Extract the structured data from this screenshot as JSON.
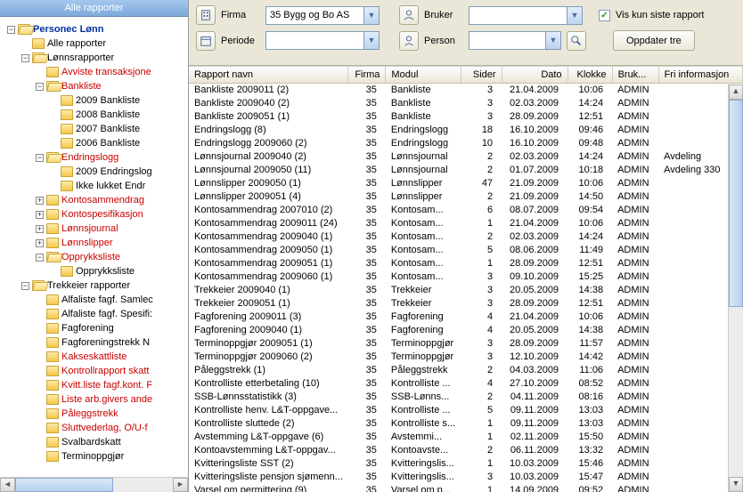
{
  "tree_header": "Alle rapporter",
  "root": {
    "label": "Personec Lønn",
    "alle": "Alle rapporter",
    "lonns": "Lønnsrapporter",
    "avviste": "Avviste transaksjone",
    "bankliste": "Bankliste",
    "bank2009": "2009 Bankliste",
    "bank2008": "2008 Bankliste",
    "bank2007": "2007 Bankliste",
    "bank2006": "2006 Bankliste",
    "endringslogg": "Endringslogg",
    "endr2009": "2009 Endringslog",
    "ikke_lukket": "Ikke lukket Endr",
    "kontosammen": "Kontosammendrag",
    "kontospes": "Kontospesifikasjon",
    "lonnsjournal": "Lønnsjournal",
    "lonnslipper": "Lønnslipper",
    "opprykk": "Opprykksliste",
    "opprykk_child": "Opprykksliste",
    "trekkeier": "Trekkeier rapporter",
    "alfa_samle": "Alfaliste fagf. Samlec",
    "alfa_spes": "Alfaliste fagf. Spesifi:",
    "fagforening": "Fagforening",
    "fagforeningstrekk": "Fagforeningstrekk N",
    "kakseskatt": "Kakseskattliste",
    "kontrollrapport": "Kontrollrapport skatt",
    "kvitt": "Kvitt.liste fagf.kont. F",
    "liste_arb": "Liste arb.givers ande",
    "paleggstrekk": "Påleggstrekk",
    "sluttvederlag": "Sluttvederlag, O/U-f",
    "svalbard": "Svalbardskatt",
    "terminoppg": "Terminoppgjør"
  },
  "filters": {
    "firma_label": "Firma",
    "firma_value": "35 Bygg og Bo AS",
    "bruker_label": "Bruker",
    "bruker_value": "",
    "vis_kun": "Vis kun siste rapport",
    "periode_label": "Periode",
    "periode_value": "",
    "person_label": "Person",
    "person_value": "",
    "oppdater": "Oppdater tre"
  },
  "columns": {
    "navn": "Rapport navn",
    "firma": "Firma",
    "modul": "Modul",
    "sider": "Sider",
    "dato": "Dato",
    "klokke": "Klokke",
    "bruk": "Bruk...",
    "fri": "Fri informasjon"
  },
  "rows": [
    {
      "n": "Bankliste 2009011 (2)",
      "f": "35",
      "m": "Bankliste",
      "s": "3",
      "d": "21.04.2009",
      "k": "10:06",
      "b": "ADMIN",
      "i": ""
    },
    {
      "n": "Bankliste 2009040 (2)",
      "f": "35",
      "m": "Bankliste",
      "s": "3",
      "d": "02.03.2009",
      "k": "14:24",
      "b": "ADMIN",
      "i": ""
    },
    {
      "n": "Bankliste 2009051 (1)",
      "f": "35",
      "m": "Bankliste",
      "s": "3",
      "d": "28.09.2009",
      "k": "12:51",
      "b": "ADMIN",
      "i": ""
    },
    {
      "n": "Endringslogg (8)",
      "f": "35",
      "m": "Endringslogg",
      "s": "18",
      "d": "16.10.2009",
      "k": "09:46",
      "b": "ADMIN",
      "i": ""
    },
    {
      "n": "Endringslogg 2009060 (2)",
      "f": "35",
      "m": "Endringslogg",
      "s": "10",
      "d": "16.10.2009",
      "k": "09:48",
      "b": "ADMIN",
      "i": ""
    },
    {
      "n": "Lønnsjournal 2009040 (2)",
      "f": "35",
      "m": "Lønnsjournal",
      "s": "2",
      "d": "02.03.2009",
      "k": "14:24",
      "b": "ADMIN",
      "i": "Avdeling"
    },
    {
      "n": "Lønnsjournal 2009050 (11)",
      "f": "35",
      "m": "Lønnsjournal",
      "s": "2",
      "d": "01.07.2009",
      "k": "10:18",
      "b": "ADMIN",
      "i": "Avdeling 330"
    },
    {
      "n": "Lønnslipper 2009050 (1)",
      "f": "35",
      "m": "Lønnslipper",
      "s": "47",
      "d": "21.09.2009",
      "k": "10:06",
      "b": "ADMIN",
      "i": ""
    },
    {
      "n": "Lønnslipper 2009051 (4)",
      "f": "35",
      "m": "Lønnslipper",
      "s": "2",
      "d": "21.09.2009",
      "k": "14:50",
      "b": "ADMIN",
      "i": ""
    },
    {
      "n": "Kontosammendrag 2007010 (2)",
      "f": "35",
      "m": "Kontosam...",
      "s": "6",
      "d": "08.07.2009",
      "k": "09:54",
      "b": "ADMIN",
      "i": ""
    },
    {
      "n": "Kontosammendrag 2009011 (24)",
      "f": "35",
      "m": "Kontosam...",
      "s": "1",
      "d": "21.04.2009",
      "k": "10:06",
      "b": "ADMIN",
      "i": ""
    },
    {
      "n": "Kontosammendrag 2009040 (1)",
      "f": "35",
      "m": "Kontosam...",
      "s": "2",
      "d": "02.03.2009",
      "k": "14:24",
      "b": "ADMIN",
      "i": ""
    },
    {
      "n": "Kontosammendrag 2009050 (1)",
      "f": "35",
      "m": "Kontosam...",
      "s": "5",
      "d": "08.06.2009",
      "k": "11:49",
      "b": "ADMIN",
      "i": ""
    },
    {
      "n": "Kontosammendrag 2009051 (1)",
      "f": "35",
      "m": "Kontosam...",
      "s": "1",
      "d": "28.09.2009",
      "k": "12:51",
      "b": "ADMIN",
      "i": ""
    },
    {
      "n": "Kontosammendrag 2009060 (1)",
      "f": "35",
      "m": "Kontosam...",
      "s": "3",
      "d": "09.10.2009",
      "k": "15:25",
      "b": "ADMIN",
      "i": ""
    },
    {
      "n": "Trekkeier 2009040 (1)",
      "f": "35",
      "m": "Trekkeier",
      "s": "3",
      "d": "20.05.2009",
      "k": "14:38",
      "b": "ADMIN",
      "i": ""
    },
    {
      "n": "Trekkeier 2009051 (1)",
      "f": "35",
      "m": "Trekkeier",
      "s": "3",
      "d": "28.09.2009",
      "k": "12:51",
      "b": "ADMIN",
      "i": ""
    },
    {
      "n": "Fagforening 2009011 (3)",
      "f": "35",
      "m": "Fagforening",
      "s": "4",
      "d": "21.04.2009",
      "k": "10:06",
      "b": "ADMIN",
      "i": ""
    },
    {
      "n": "Fagforening 2009040 (1)",
      "f": "35",
      "m": "Fagforening",
      "s": "4",
      "d": "20.05.2009",
      "k": "14:38",
      "b": "ADMIN",
      "i": ""
    },
    {
      "n": "Terminoppgjør 2009051 (1)",
      "f": "35",
      "m": "Terminoppgjør",
      "s": "3",
      "d": "28.09.2009",
      "k": "11:57",
      "b": "ADMIN",
      "i": ""
    },
    {
      "n": "Terminoppgjør 2009060 (2)",
      "f": "35",
      "m": "Terminoppgjør",
      "s": "3",
      "d": "12.10.2009",
      "k": "14:42",
      "b": "ADMIN",
      "i": ""
    },
    {
      "n": "Påleggstrekk (1)",
      "f": "35",
      "m": "Påleggstrekk",
      "s": "2",
      "d": "04.03.2009",
      "k": "11:06",
      "b": "ADMIN",
      "i": ""
    },
    {
      "n": "Kontrolliste etterbetaling (10)",
      "f": "35",
      "m": "Kontrolliste ...",
      "s": "4",
      "d": "27.10.2009",
      "k": "08:52",
      "b": "ADMIN",
      "i": ""
    },
    {
      "n": "SSB-Lønnsstatistikk (3)",
      "f": "35",
      "m": "SSB-Lønns...",
      "s": "2",
      "d": "04.11.2009",
      "k": "08:16",
      "b": "ADMIN",
      "i": ""
    },
    {
      "n": "Kontrolliste henv. L&T-oppgave...",
      "f": "35",
      "m": "Kontrolliste ...",
      "s": "5",
      "d": "09.11.2009",
      "k": "13:03",
      "b": "ADMIN",
      "i": ""
    },
    {
      "n": "Kontrolliste sluttede (2)",
      "f": "35",
      "m": "Kontrolliste s...",
      "s": "1",
      "d": "09.11.2009",
      "k": "13:03",
      "b": "ADMIN",
      "i": ""
    },
    {
      "n": "Avstemming L&T-oppgave (6)",
      "f": "35",
      "m": "Avstemmi...",
      "s": "1",
      "d": "02.11.2009",
      "k": "15:50",
      "b": "ADMIN",
      "i": ""
    },
    {
      "n": "Kontoavstemming L&T-oppgav...",
      "f": "35",
      "m": "Kontoavste...",
      "s": "2",
      "d": "06.11.2009",
      "k": "13:32",
      "b": "ADMIN",
      "i": ""
    },
    {
      "n": "Kvitteringsliste SST (2)",
      "f": "35",
      "m": "Kvitteringslis...",
      "s": "1",
      "d": "10.03.2009",
      "k": "15:46",
      "b": "ADMIN",
      "i": ""
    },
    {
      "n": "Kvitteringsliste pensjon sjømenn...",
      "f": "35",
      "m": "Kvitteringslis...",
      "s": "3",
      "d": "10.03.2009",
      "k": "15:47",
      "b": "ADMIN",
      "i": ""
    },
    {
      "n": "Varsel om permittering (9)",
      "f": "35",
      "m": "Varsel om p...",
      "s": "1",
      "d": "14.09.2009",
      "k": "09:52",
      "b": "ADMIN",
      "i": ""
    }
  ]
}
